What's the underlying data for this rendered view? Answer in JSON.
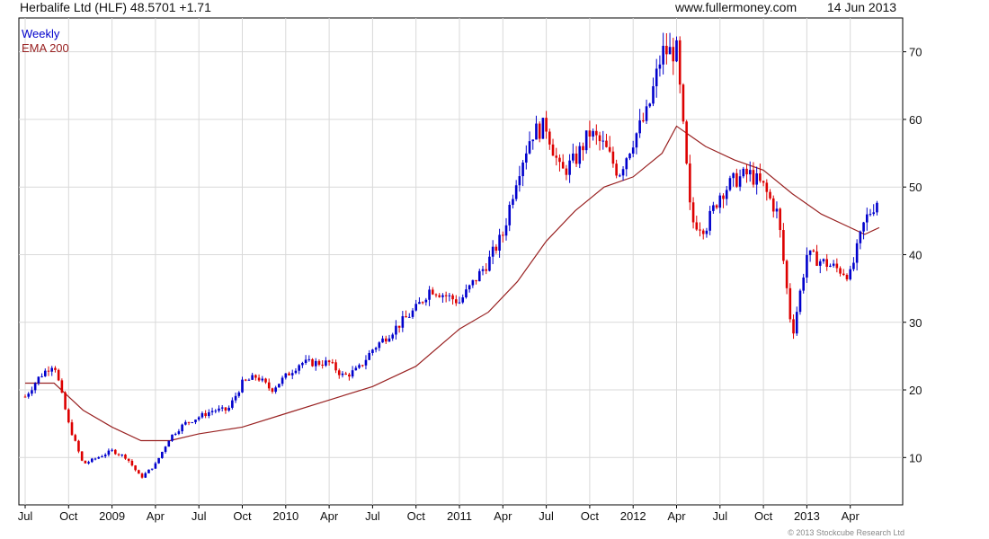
{
  "header": {
    "title": "Herbalife Ltd (HLF) 48.5701 +1.71",
    "site": "www.fullermoney.com",
    "date": "14 Jun 2013"
  },
  "legend": {
    "frequency": "Weekly",
    "ema": "EMA 200"
  },
  "copyright": "© 2013 Stockcube Research Ltd",
  "colors": {
    "up": "#0000cc",
    "down": "#dd0000",
    "ema": "#992222",
    "grid": "#d9d9d9",
    "axis": "#000000"
  },
  "chart_data": {
    "type": "line",
    "series_style": "weekly candlesticks with 200-day EMA overlay",
    "x_ticks": [
      "Jul",
      "Oct",
      "2009",
      "Apr",
      "Jul",
      "Oct",
      "2010",
      "Apr",
      "Jul",
      "Oct",
      "2011",
      "Apr",
      "Jul",
      "Oct",
      "2012",
      "Apr",
      "Jul",
      "Oct",
      "2013",
      "Apr"
    ],
    "y_ticks": [
      10,
      20,
      30,
      40,
      50,
      60,
      70
    ],
    "ylim": [
      3,
      75
    ],
    "y_axis_side": "right",
    "grid": true,
    "price_series": {
      "name": "Weekly",
      "points": [
        [
          "Jul 2008",
          19
        ],
        [
          "Aug 2008",
          22
        ],
        [
          "Sep 2008",
          24
        ],
        [
          "Oct 2008",
          15
        ],
        [
          "Nov 2008",
          9
        ],
        [
          "Dec 2008",
          10
        ],
        [
          "Jan 2009",
          11
        ],
        [
          "Feb 2009",
          10
        ],
        [
          "Mar 2009",
          7
        ],
        [
          "Apr 2009",
          9
        ],
        [
          "May 2009",
          13
        ],
        [
          "Jun 2009",
          15
        ],
        [
          "Jul 2009",
          16
        ],
        [
          "Aug 2009",
          17
        ],
        [
          "Sep 2009",
          17
        ],
        [
          "Oct 2009",
          21
        ],
        [
          "Nov 2009",
          22
        ],
        [
          "Dec 2009",
          20
        ],
        [
          "Jan 2010",
          22
        ],
        [
          "Feb 2010",
          24
        ],
        [
          "Mar 2010",
          24
        ],
        [
          "Apr 2010",
          24
        ],
        [
          "May 2010",
          22
        ],
        [
          "Jun 2010",
          23
        ],
        [
          "Jul 2010",
          26
        ],
        [
          "Aug 2010",
          28
        ],
        [
          "Sep 2010",
          30
        ],
        [
          "Oct 2010",
          32
        ],
        [
          "Nov 2010",
          35
        ],
        [
          "Dec 2010",
          34
        ],
        [
          "Jan 2011",
          33
        ],
        [
          "Feb 2011",
          36
        ],
        [
          "Mar 2011",
          39
        ],
        [
          "Apr 2011",
          43
        ],
        [
          "May 2011",
          52
        ],
        [
          "Jun 2011",
          58
        ],
        [
          "Jul 2011",
          59
        ],
        [
          "Aug 2011",
          52
        ],
        [
          "Sep 2011",
          54
        ],
        [
          "Oct 2011",
          58
        ],
        [
          "Nov 2011",
          56
        ],
        [
          "Dec 2011",
          52
        ],
        [
          "Jan 2012",
          57
        ],
        [
          "Feb 2012",
          61
        ],
        [
          "Mar 2012",
          70
        ],
        [
          "Apr 2012",
          70
        ],
        [
          "May 2012",
          45
        ],
        [
          "Jun 2012",
          44
        ],
        [
          "Jul 2012",
          49
        ],
        [
          "Aug 2012",
          51
        ],
        [
          "Sep 2012",
          52
        ],
        [
          "Oct 2012",
          50
        ],
        [
          "Nov 2012",
          46
        ],
        [
          "Dec 2012",
          28
        ],
        [
          "Jan 2013",
          40
        ],
        [
          "Feb 2013",
          39
        ],
        [
          "Mar 2013",
          38
        ],
        [
          "Apr 2013",
          37
        ],
        [
          "May 2013",
          45
        ],
        [
          "Jun 2013",
          48.57
        ]
      ]
    },
    "ema_series": {
      "name": "EMA 200",
      "points": [
        [
          "Jul 2008",
          21
        ],
        [
          "Sep 2008",
          21
        ],
        [
          "Oct 2008",
          19
        ],
        [
          "Nov 2008",
          17
        ],
        [
          "Jan 2009",
          14.5
        ],
        [
          "Mar 2009",
          12.5
        ],
        [
          "May 2009",
          12.5
        ],
        [
          "Jul 2009",
          13.5
        ],
        [
          "Oct 2009",
          14.5
        ],
        [
          "Jan 2010",
          16.5
        ],
        [
          "Apr 2010",
          18.5
        ],
        [
          "Jul 2010",
          20.5
        ],
        [
          "Oct 2010",
          23.5
        ],
        [
          "Jan 2011",
          29
        ],
        [
          "Mar 2011",
          31.5
        ],
        [
          "May 2011",
          36
        ],
        [
          "Jul 2011",
          42
        ],
        [
          "Sep 2011",
          46.5
        ],
        [
          "Nov 2011",
          50
        ],
        [
          "Jan 2012",
          51.5
        ],
        [
          "Mar 2012",
          55
        ],
        [
          "Apr 2012",
          59
        ],
        [
          "Jun 2012",
          56
        ],
        [
          "Aug 2012",
          54
        ],
        [
          "Oct 2012",
          52.5
        ],
        [
          "Dec 2012",
          49
        ],
        [
          "Feb 2013",
          46
        ],
        [
          "Apr 2013",
          44
        ],
        [
          "May 2013",
          43
        ],
        [
          "Jun 2013",
          44
        ]
      ]
    }
  }
}
